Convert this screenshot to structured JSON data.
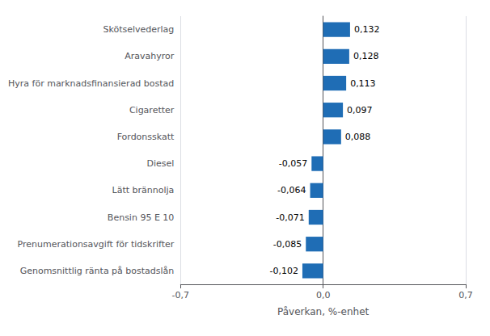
{
  "chart_data": {
    "type": "bar",
    "orientation": "horizontal",
    "categories": [
      "Genomsnittlig ränta på bostadslån",
      "Prenumerationsavgift för tidskrifter",
      "Bensin 95 E 10",
      "Lätt brännolja",
      "Diesel",
      "Fordonsskatt",
      "Cigaretter",
      "Hyra för marknadsfinansierad bostad",
      "Aravahyror",
      "Skötselvederlag"
    ],
    "values": [
      -0.102,
      -0.085,
      -0.071,
      -0.064,
      -0.057,
      0.088,
      0.097,
      0.113,
      0.128,
      0.132
    ],
    "value_labels": [
      "-0,102",
      "-0,085",
      "-0,071",
      "-0,064",
      "-0,057",
      "0,088",
      "0,097",
      "0,113",
      "0,128",
      "0,132"
    ],
    "data_labels": true,
    "color": "#1f6db5",
    "xlabel": "Påverkan, %-enhet",
    "xlim": [
      -0.7,
      0.7
    ],
    "xticks": [
      {
        "value": -0.7,
        "label": "-0,7"
      },
      {
        "value": 0.0,
        "label": "0,0"
      },
      {
        "value": 0.7,
        "label": "0,7"
      }
    ],
    "grid": true
  }
}
